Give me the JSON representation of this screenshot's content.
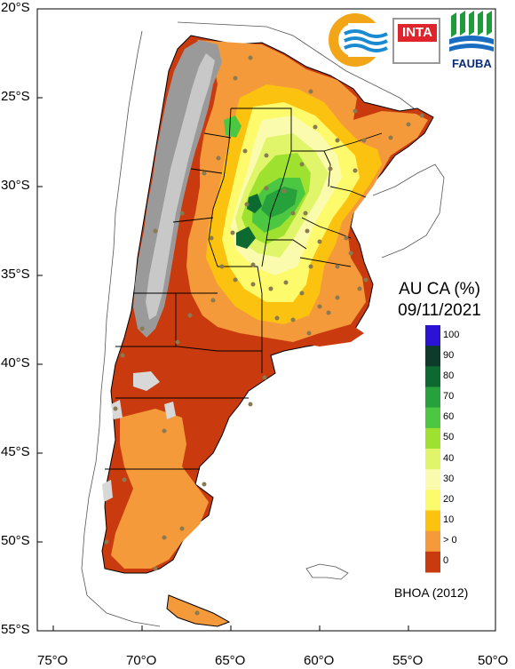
{
  "map": {
    "title_line1": "AU CA (%)",
    "title_line2": "09/11/2021",
    "source": "BHOA (2012)",
    "lat_labels": [
      "20°S",
      "25°S",
      "30°S",
      "35°S",
      "40°S",
      "45°S",
      "50°S",
      "55°S"
    ],
    "lon_labels": [
      "75°O",
      "70°O",
      "65°O",
      "60°O",
      "55°O",
      "50°O"
    ],
    "legend": {
      "labels": [
        "100",
        "90",
        "80",
        "70",
        "60",
        "50",
        "40",
        "30",
        "20",
        "10",
        "> 0",
        "0"
      ],
      "colors": [
        "#2b13d6",
        "#0d3a2b",
        "#0c6a31",
        "#27a13c",
        "#4cc741",
        "#9ee22f",
        "#e0f56a",
        "#fbfbae",
        "#fdfa6b",
        "#fbc20f",
        "#f49a3a",
        "#c93a0e"
      ]
    },
    "logos": {
      "inta": "INTA",
      "fauba": "FAUBA"
    },
    "colors": {
      "dry": "#c93a0e",
      "low": "#f49a3a",
      "mid": "#fbc20f",
      "andes_gray": "#9a9a9a",
      "border": "#000000",
      "station": "#8a7a50"
    }
  }
}
